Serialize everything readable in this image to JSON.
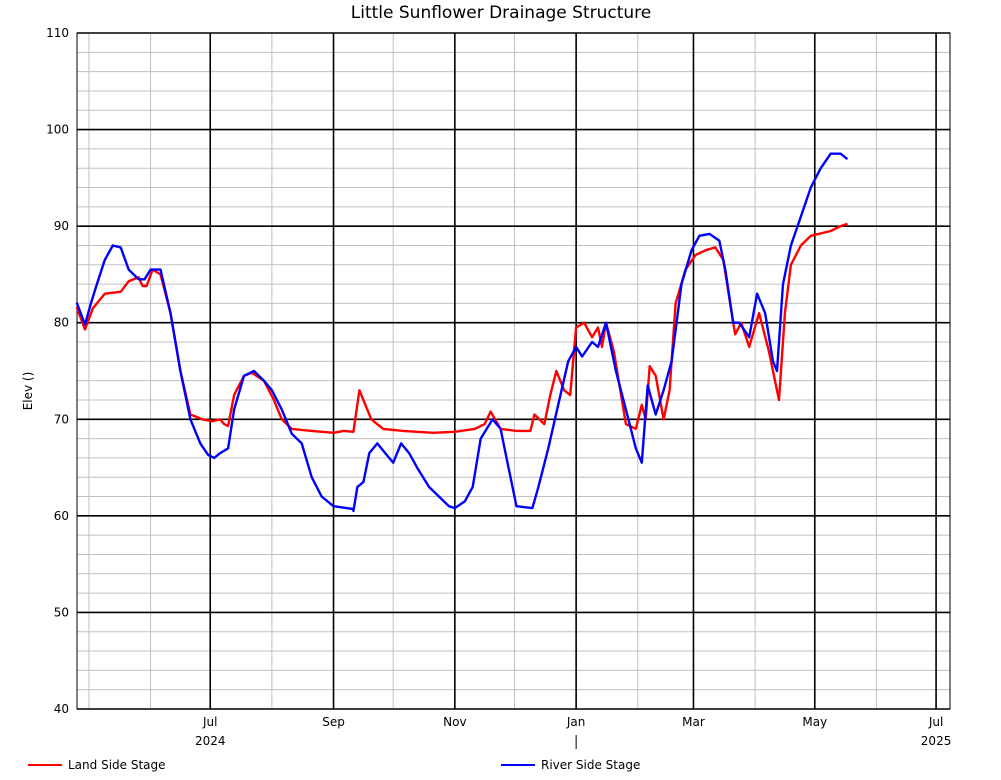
{
  "chart_data": {
    "type": "line",
    "title": "Little Sunflower Drainage Structure",
    "ylabel": "Elev ()",
    "ylim": [
      40,
      110
    ],
    "yticks": [
      40,
      50,
      60,
      70,
      80,
      90,
      100,
      110
    ],
    "xlim": [
      "2024-04-25",
      "2025-07-08"
    ],
    "xticks": [
      {
        "date": "2024-07-01",
        "label": "Jul"
      },
      {
        "date": "2024-09-01",
        "label": "Sep"
      },
      {
        "date": "2024-11-01",
        "label": "Nov"
      },
      {
        "date": "2025-01-01",
        "label": "Jan"
      },
      {
        "date": "2025-03-01",
        "label": "Mar"
      },
      {
        "date": "2025-05-01",
        "label": "May"
      },
      {
        "date": "2025-07-01",
        "label": "Jul"
      }
    ],
    "year_labels": [
      {
        "date": "2024-07-01",
        "label": "2024"
      },
      {
        "date": "2025-07-01",
        "label": "2025"
      }
    ],
    "grid": true,
    "legend": "bottom",
    "series": [
      {
        "name": "Land Side Stage",
        "color": "#ff0000",
        "points": [
          [
            "2024-04-25",
            81.5
          ],
          [
            "2024-04-29",
            79.3
          ],
          [
            "2024-05-03",
            81.5
          ],
          [
            "2024-05-09",
            83.0
          ],
          [
            "2024-05-17",
            83.2
          ],
          [
            "2024-05-21",
            84.3
          ],
          [
            "2024-05-26",
            84.7
          ],
          [
            "2024-05-28",
            83.8
          ],
          [
            "2024-05-30",
            83.8
          ],
          [
            "2024-06-02",
            85.5
          ],
          [
            "2024-06-06",
            85.0
          ],
          [
            "2024-06-11",
            81.0
          ],
          [
            "2024-06-16",
            75.0
          ],
          [
            "2024-06-21",
            70.5
          ],
          [
            "2024-06-27",
            70.0
          ],
          [
            "2024-07-02",
            69.8
          ],
          [
            "2024-07-06",
            70.0
          ],
          [
            "2024-07-08",
            69.5
          ],
          [
            "2024-07-10",
            69.3
          ],
          [
            "2024-07-13",
            72.5
          ],
          [
            "2024-07-18",
            74.5
          ],
          [
            "2024-07-22",
            74.8
          ],
          [
            "2024-07-28",
            74.0
          ],
          [
            "2024-08-02",
            72.0
          ],
          [
            "2024-08-06",
            70.0
          ],
          [
            "2024-08-11",
            69.0
          ],
          [
            "2024-08-21",
            68.8
          ],
          [
            "2024-09-01",
            68.6
          ],
          [
            "2024-09-06",
            68.8
          ],
          [
            "2024-09-11",
            68.7
          ],
          [
            "2024-09-14",
            73.0
          ],
          [
            "2024-09-16",
            72.0
          ],
          [
            "2024-09-20",
            70.0
          ],
          [
            "2024-09-26",
            69.0
          ],
          [
            "2024-10-06",
            68.8
          ],
          [
            "2024-10-21",
            68.6
          ],
          [
            "2024-11-01",
            68.7
          ],
          [
            "2024-11-11",
            69.0
          ],
          [
            "2024-11-16",
            69.5
          ],
          [
            "2024-11-19",
            70.8
          ],
          [
            "2024-11-24",
            69.0
          ],
          [
            "2024-12-02",
            68.8
          ],
          [
            "2024-12-09",
            68.8
          ],
          [
            "2024-12-11",
            70.5
          ],
          [
            "2024-12-16",
            69.5
          ],
          [
            "2024-12-19",
            72.5
          ],
          [
            "2024-12-22",
            75.0
          ],
          [
            "2024-12-26",
            73.0
          ],
          [
            "2024-12-29",
            72.5
          ],
          [
            "2025-01-01",
            79.5
          ],
          [
            "2025-01-05",
            80.0
          ],
          [
            "2025-01-09",
            78.5
          ],
          [
            "2025-01-12",
            79.5
          ],
          [
            "2025-01-14",
            77.5
          ],
          [
            "2025-01-16",
            80.0
          ],
          [
            "2025-01-20",
            77.0
          ],
          [
            "2025-01-26",
            69.5
          ],
          [
            "2025-01-31",
            69.0
          ],
          [
            "2025-02-03",
            71.5
          ],
          [
            "2025-02-05",
            70.0
          ],
          [
            "2025-02-07",
            75.5
          ],
          [
            "2025-02-10",
            74.5
          ],
          [
            "2025-02-14",
            70.0
          ],
          [
            "2025-02-17",
            73.0
          ],
          [
            "2025-02-20",
            82.0
          ],
          [
            "2025-02-25",
            85.5
          ],
          [
            "2025-03-02",
            87.0
          ],
          [
            "2025-03-07",
            87.5
          ],
          [
            "2025-03-12",
            87.8
          ],
          [
            "2025-03-16",
            86.5
          ],
          [
            "2025-03-21",
            80.0
          ],
          [
            "2025-03-22",
            78.8
          ],
          [
            "2025-03-25",
            80.0
          ],
          [
            "2025-03-29",
            77.5
          ],
          [
            "2025-04-03",
            81.0
          ],
          [
            "2025-04-08",
            77.0
          ],
          [
            "2025-04-11",
            74.0
          ],
          [
            "2025-04-13",
            72.0
          ],
          [
            "2025-04-16",
            81.0
          ],
          [
            "2025-04-19",
            86.0
          ],
          [
            "2025-04-24",
            88.0
          ],
          [
            "2025-04-29",
            89.0
          ],
          [
            "2025-05-09",
            89.5
          ],
          [
            "2025-05-14",
            90.0
          ],
          [
            "2025-05-17",
            90.2
          ]
        ]
      },
      {
        "name": "River Side Stage",
        "color": "#0000ff",
        "points": [
          [
            "2024-04-25",
            82.0
          ],
          [
            "2024-04-29",
            79.8
          ],
          [
            "2024-05-02",
            82.0
          ],
          [
            "2024-05-05",
            84.0
          ],
          [
            "2024-05-09",
            86.5
          ],
          [
            "2024-05-13",
            88.0
          ],
          [
            "2024-05-17",
            87.8
          ],
          [
            "2024-05-21",
            85.5
          ],
          [
            "2024-05-26",
            84.5
          ],
          [
            "2024-05-29",
            84.5
          ],
          [
            "2024-06-01",
            85.5
          ],
          [
            "2024-06-06",
            85.5
          ],
          [
            "2024-06-11",
            81.0
          ],
          [
            "2024-06-16",
            75.0
          ],
          [
            "2024-06-21",
            70.0
          ],
          [
            "2024-06-26",
            67.5
          ],
          [
            "2024-06-30",
            66.3
          ],
          [
            "2024-07-03",
            66.0
          ],
          [
            "2024-07-06",
            66.5
          ],
          [
            "2024-07-10",
            67.0
          ],
          [
            "2024-07-13",
            71.0
          ],
          [
            "2024-07-18",
            74.5
          ],
          [
            "2024-07-23",
            75.0
          ],
          [
            "2024-07-28",
            74.0
          ],
          [
            "2024-08-01",
            73.0
          ],
          [
            "2024-08-06",
            71.0
          ],
          [
            "2024-08-11",
            68.5
          ],
          [
            "2024-08-16",
            67.5
          ],
          [
            "2024-08-21",
            64.0
          ],
          [
            "2024-08-26",
            62.0
          ],
          [
            "2024-09-01",
            61.0
          ],
          [
            "2024-09-11",
            60.7
          ],
          [
            "2024-09-11",
            60.5
          ],
          [
            "2024-09-13",
            63.0
          ],
          [
            "2024-09-16",
            63.5
          ],
          [
            "2024-09-19",
            66.5
          ],
          [
            "2024-09-23",
            67.5
          ],
          [
            "2024-09-27",
            66.5
          ],
          [
            "2024-10-01",
            65.5
          ],
          [
            "2024-10-05",
            67.5
          ],
          [
            "2024-10-09",
            66.5
          ],
          [
            "2024-10-13",
            65.0
          ],
          [
            "2024-10-19",
            63.0
          ],
          [
            "2024-10-24",
            62.0
          ],
          [
            "2024-10-29",
            61.0
          ],
          [
            "2024-11-01",
            60.8
          ],
          [
            "2024-11-06",
            61.5
          ],
          [
            "2024-11-10",
            63.0
          ],
          [
            "2024-11-14",
            68.0
          ],
          [
            "2024-11-20",
            70.0
          ],
          [
            "2024-11-24",
            69.0
          ],
          [
            "2024-11-28",
            65.0
          ],
          [
            "2024-12-02",
            61.0
          ],
          [
            "2024-12-06",
            60.9
          ],
          [
            "2024-12-10",
            60.8
          ],
          [
            "2024-12-13",
            63.0
          ],
          [
            "2024-12-18",
            67.0
          ],
          [
            "2024-12-23",
            71.5
          ],
          [
            "2024-12-28",
            76.0
          ],
          [
            "2025-01-01",
            77.5
          ],
          [
            "2025-01-04",
            76.5
          ],
          [
            "2025-01-09",
            78.0
          ],
          [
            "2025-01-12",
            77.5
          ],
          [
            "2025-01-16",
            80.0
          ],
          [
            "2025-01-21",
            75.0
          ],
          [
            "2025-01-26",
            71.0
          ],
          [
            "2025-01-31",
            67.0
          ],
          [
            "2025-02-03",
            65.5
          ],
          [
            "2025-02-06",
            73.5
          ],
          [
            "2025-02-10",
            70.5
          ],
          [
            "2025-02-14",
            73.0
          ],
          [
            "2025-02-18",
            76.0
          ],
          [
            "2025-02-23",
            84.0
          ],
          [
            "2025-02-28",
            87.5
          ],
          [
            "2025-03-04",
            89.0
          ],
          [
            "2025-03-09",
            89.2
          ],
          [
            "2025-03-14",
            88.5
          ],
          [
            "2025-03-17",
            85.5
          ],
          [
            "2025-03-21",
            80.0
          ],
          [
            "2025-03-24",
            80.0
          ],
          [
            "2025-03-29",
            78.5
          ],
          [
            "2025-04-02",
            83.0
          ],
          [
            "2025-04-06",
            81.0
          ],
          [
            "2025-04-10",
            76.0
          ],
          [
            "2025-04-12",
            75.0
          ],
          [
            "2025-04-15",
            84.0
          ],
          [
            "2025-04-19",
            88.0
          ],
          [
            "2025-04-24",
            91.0
          ],
          [
            "2025-04-29",
            94.0
          ],
          [
            "2025-05-04",
            96.0
          ],
          [
            "2025-05-09",
            97.5
          ],
          [
            "2025-05-14",
            97.5
          ],
          [
            "2025-05-17",
            97.0
          ]
        ]
      }
    ]
  }
}
